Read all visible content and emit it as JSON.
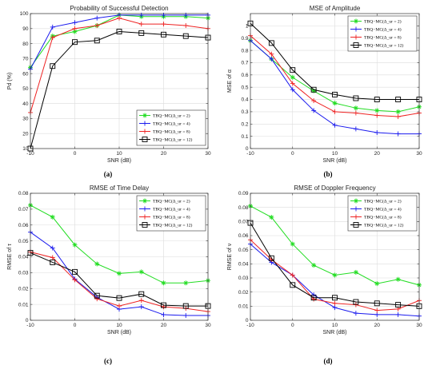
{
  "chart_data": [
    {
      "type": "line",
      "title": "Probability of Successful Detection",
      "xlabel": "SNR (dB)",
      "ylabel": "Pd (%)",
      "caption": "(a)",
      "xlim": [
        -10,
        30
      ],
      "ylim": [
        10,
        100
      ],
      "xticks": [
        -10,
        0,
        10,
        20,
        30
      ],
      "xtick_labels": [
        "-10",
        "0",
        "10",
        "20",
        "30"
      ],
      "yticks": [
        10,
        20,
        30,
        40,
        50,
        60,
        70,
        80,
        90,
        100
      ],
      "ytick_labels": [
        "10",
        "20",
        "30",
        "40",
        "50",
        "60",
        "70",
        "80",
        "90",
        "100"
      ],
      "grid": true,
      "legend_position": "bottom-right",
      "x": [
        -10,
        -5,
        0,
        5,
        10,
        15,
        20,
        25,
        30
      ],
      "series": [
        {
          "name": "TBQ−MC(Δ_ur = 2)",
          "color": "#22dd22",
          "marker": "asterisk",
          "values": [
            64,
            85,
            88,
            92,
            99,
            98,
            98,
            98,
            97
          ]
        },
        {
          "name": "TBQ−MC(Δ_ur = 4)",
          "color": "#1a1aee",
          "marker": "plus",
          "values": [
            63,
            91,
            94,
            97,
            99,
            99,
            99,
            99,
            99
          ]
        },
        {
          "name": "TBQ−MC(Δ_ur = 8)",
          "color": "#ee2222",
          "marker": "plus",
          "values": [
            34,
            84,
            90,
            92,
            97,
            93,
            93,
            92,
            90
          ]
        },
        {
          "name": "TBQ−MC(Δ_ur = 12)",
          "color": "#000000",
          "marker": "square",
          "values": [
            10,
            65,
            81,
            82,
            88,
            87,
            86,
            85,
            84
          ]
        }
      ]
    },
    {
      "type": "line",
      "title": "MSE of Amplitude",
      "xlabel": "SNR (dB)",
      "ylabel": "MSE of α",
      "caption": "(b)",
      "xlim": [
        -10,
        30
      ],
      "ylim": [
        0,
        1.1
      ],
      "xticks": [
        -10,
        0,
        10,
        20,
        30
      ],
      "xtick_labels": [
        "-10",
        "0",
        "10",
        "20",
        "30"
      ],
      "yticks": [
        0,
        0.1,
        0.2,
        0.3,
        0.4,
        0.5,
        0.6,
        0.7,
        0.8,
        0.9,
        1
      ],
      "ytick_labels": [
        "0",
        "0.1",
        "0.2",
        "0.3",
        "0.4",
        "0.5",
        "0.6",
        "0.7",
        "0.8",
        "0.9",
        "1"
      ],
      "grid": true,
      "legend_position": "top-right",
      "x": [
        -10,
        -5,
        0,
        5,
        10,
        15,
        20,
        25,
        30
      ],
      "series": [
        {
          "name": "TBQ−MC(Δ_ur = 2)",
          "color": "#22dd22",
          "marker": "asterisk",
          "values": [
            0.88,
            0.73,
            0.58,
            0.47,
            0.37,
            0.33,
            0.31,
            0.3,
            0.34
          ]
        },
        {
          "name": "TBQ−MC(Δ_ur = 4)",
          "color": "#1a1aee",
          "marker": "plus",
          "values": [
            0.88,
            0.73,
            0.48,
            0.31,
            0.19,
            0.16,
            0.13,
            0.12,
            0.12
          ]
        },
        {
          "name": "TBQ−MC(Δ_ur = 8)",
          "color": "#ee2222",
          "marker": "plus",
          "values": [
            0.92,
            0.77,
            0.53,
            0.39,
            0.3,
            0.29,
            0.27,
            0.26,
            0.29
          ]
        },
        {
          "name": "TBQ−MC(Δ_ur = 12)",
          "color": "#000000",
          "marker": "square",
          "values": [
            1.02,
            0.86,
            0.64,
            0.48,
            0.44,
            0.41,
            0.4,
            0.4,
            0.4
          ]
        }
      ]
    },
    {
      "type": "line",
      "title": "RMSE of Time Delay",
      "xlabel": "SNR (dB)",
      "ylabel": "RMSE of τ",
      "caption": "(c)",
      "xlim": [
        -10,
        30
      ],
      "ylim": [
        0,
        0.08
      ],
      "xticks": [
        -10,
        0,
        10,
        20,
        30
      ],
      "xtick_labels": [
        "-10",
        "0",
        "10",
        "20",
        "30"
      ],
      "yticks": [
        0,
        0.01,
        0.02,
        0.03,
        0.04,
        0.05,
        0.06,
        0.07,
        0.08
      ],
      "ytick_labels": [
        "0",
        "0.01",
        "0.02",
        "0.03",
        "0.04",
        "0.05",
        "0.06",
        "0.07",
        "0.08"
      ],
      "grid": true,
      "legend_position": "top-right",
      "x": [
        -10,
        -5,
        0,
        5,
        10,
        15,
        20,
        25,
        30
      ],
      "series": [
        {
          "name": "TBQ−MC(Δ_ur = 2)",
          "color": "#22dd22",
          "marker": "asterisk",
          "values": [
            0.0725,
            0.065,
            0.0475,
            0.0355,
            0.0295,
            0.0305,
            0.0235,
            0.0235,
            0.025
          ]
        },
        {
          "name": "TBQ−MC(Δ_ur = 4)",
          "color": "#1a1aee",
          "marker": "plus",
          "values": [
            0.0555,
            0.0455,
            0.026,
            0.0145,
            0.007,
            0.0085,
            0.0035,
            0.003,
            0.003
          ]
        },
        {
          "name": "TBQ−MC(Δ_ur = 8)",
          "color": "#ee2222",
          "marker": "plus",
          "values": [
            0.043,
            0.0395,
            0.0255,
            0.0135,
            0.009,
            0.0125,
            0.0085,
            0.0075,
            0.0055
          ]
        },
        {
          "name": "TBQ−MC(Δ_ur = 12)",
          "color": "#000000",
          "marker": "square",
          "values": [
            0.0425,
            0.0365,
            0.0305,
            0.0155,
            0.014,
            0.0165,
            0.0095,
            0.009,
            0.009
          ]
        }
      ]
    },
    {
      "type": "line",
      "title": "RMSE of Doppler Frequency",
      "xlabel": "SNR (dB)",
      "ylabel": "RMSE of ν",
      "caption": "(d)",
      "xlim": [
        -10,
        30
      ],
      "ylim": [
        0,
        0.09
      ],
      "xticks": [
        -10,
        0,
        10,
        20,
        30
      ],
      "xtick_labels": [
        "-10",
        "0",
        "10",
        "20",
        "30"
      ],
      "yticks": [
        0,
        0.01,
        0.02,
        0.03,
        0.04,
        0.05,
        0.06,
        0.07,
        0.08,
        0.09
      ],
      "ytick_labels": [
        "0",
        "0.01",
        "0.02",
        "0.03",
        "0.04",
        "0.05",
        "0.06",
        "0.07",
        "0.08",
        "0.09"
      ],
      "grid": true,
      "legend_position": "top-right",
      "x": [
        -10,
        -5,
        0,
        5,
        10,
        15,
        20,
        25,
        30
      ],
      "series": [
        {
          "name": "TBQ−MC(Δ_ur = 2)",
          "color": "#22dd22",
          "marker": "asterisk",
          "values": [
            0.081,
            0.073,
            0.054,
            0.039,
            0.032,
            0.034,
            0.026,
            0.029,
            0.025
          ]
        },
        {
          "name": "TBQ−MC(Δ_ur = 4)",
          "color": "#1a1aee",
          "marker": "plus",
          "values": [
            0.054,
            0.041,
            0.032,
            0.018,
            0.009,
            0.005,
            0.004,
            0.004,
            0.003
          ]
        },
        {
          "name": "TBQ−MC(Δ_ur = 8)",
          "color": "#ee2222",
          "marker": "plus",
          "values": [
            0.057,
            0.043,
            0.032,
            0.015,
            0.012,
            0.011,
            0.007,
            0.008,
            0.014
          ]
        },
        {
          "name": "TBQ−MC(Δ_ur = 12)",
          "color": "#000000",
          "marker": "square",
          "values": [
            0.069,
            0.044,
            0.025,
            0.016,
            0.016,
            0.013,
            0.012,
            0.011,
            0.01
          ]
        }
      ]
    }
  ]
}
